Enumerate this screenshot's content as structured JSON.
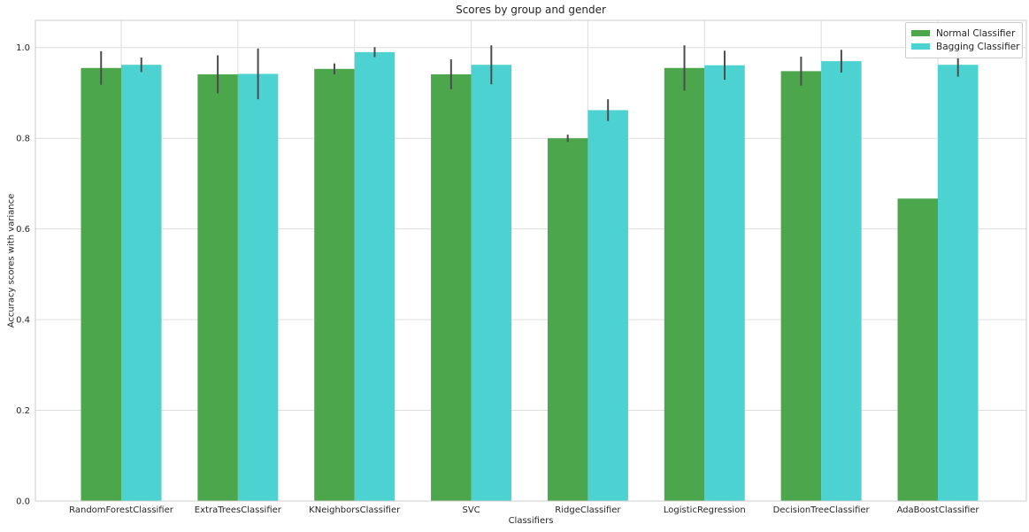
{
  "chart_data": {
    "type": "bar",
    "title": "Scores by group and gender",
    "xlabel": "Classifiers",
    "ylabel": "Accuracy scores with variance",
    "categories": [
      "RandomForestClassifier",
      "ExtraTreesClassifier",
      "KNeighborsClassifier",
      "SVC",
      "RidgeClassifier",
      "LogisticRegression",
      "DecisionTreeClassifier",
      "AdaBoostClassifier"
    ],
    "series": [
      {
        "name": "Normal Classifier",
        "color": "#4CA64C",
        "values": [
          0.955,
          0.941,
          0.953,
          0.941,
          0.8,
          0.955,
          0.948,
          0.667
        ],
        "errors": [
          0.037,
          0.042,
          0.012,
          0.033,
          0.008,
          0.05,
          0.032,
          0.0
        ]
      },
      {
        "name": "Bagging Classifier",
        "color": "#4DD2D2",
        "values": [
          0.962,
          0.942,
          0.99,
          0.962,
          0.862,
          0.961,
          0.97,
          0.962
        ],
        "errors": [
          0.016,
          0.056,
          0.011,
          0.043,
          0.024,
          0.032,
          0.025,
          0.026
        ]
      }
    ],
    "ylim": [
      0,
      1.06
    ],
    "yticks": [
      "0.0",
      "0.2",
      "0.4",
      "0.6",
      "0.8",
      "1.0"
    ],
    "grid": "both",
    "legend_position": "upper right",
    "error_bar_color": "#4C4C4C",
    "grid_color": "#dddddd",
    "spine_color": "#cccccc"
  }
}
